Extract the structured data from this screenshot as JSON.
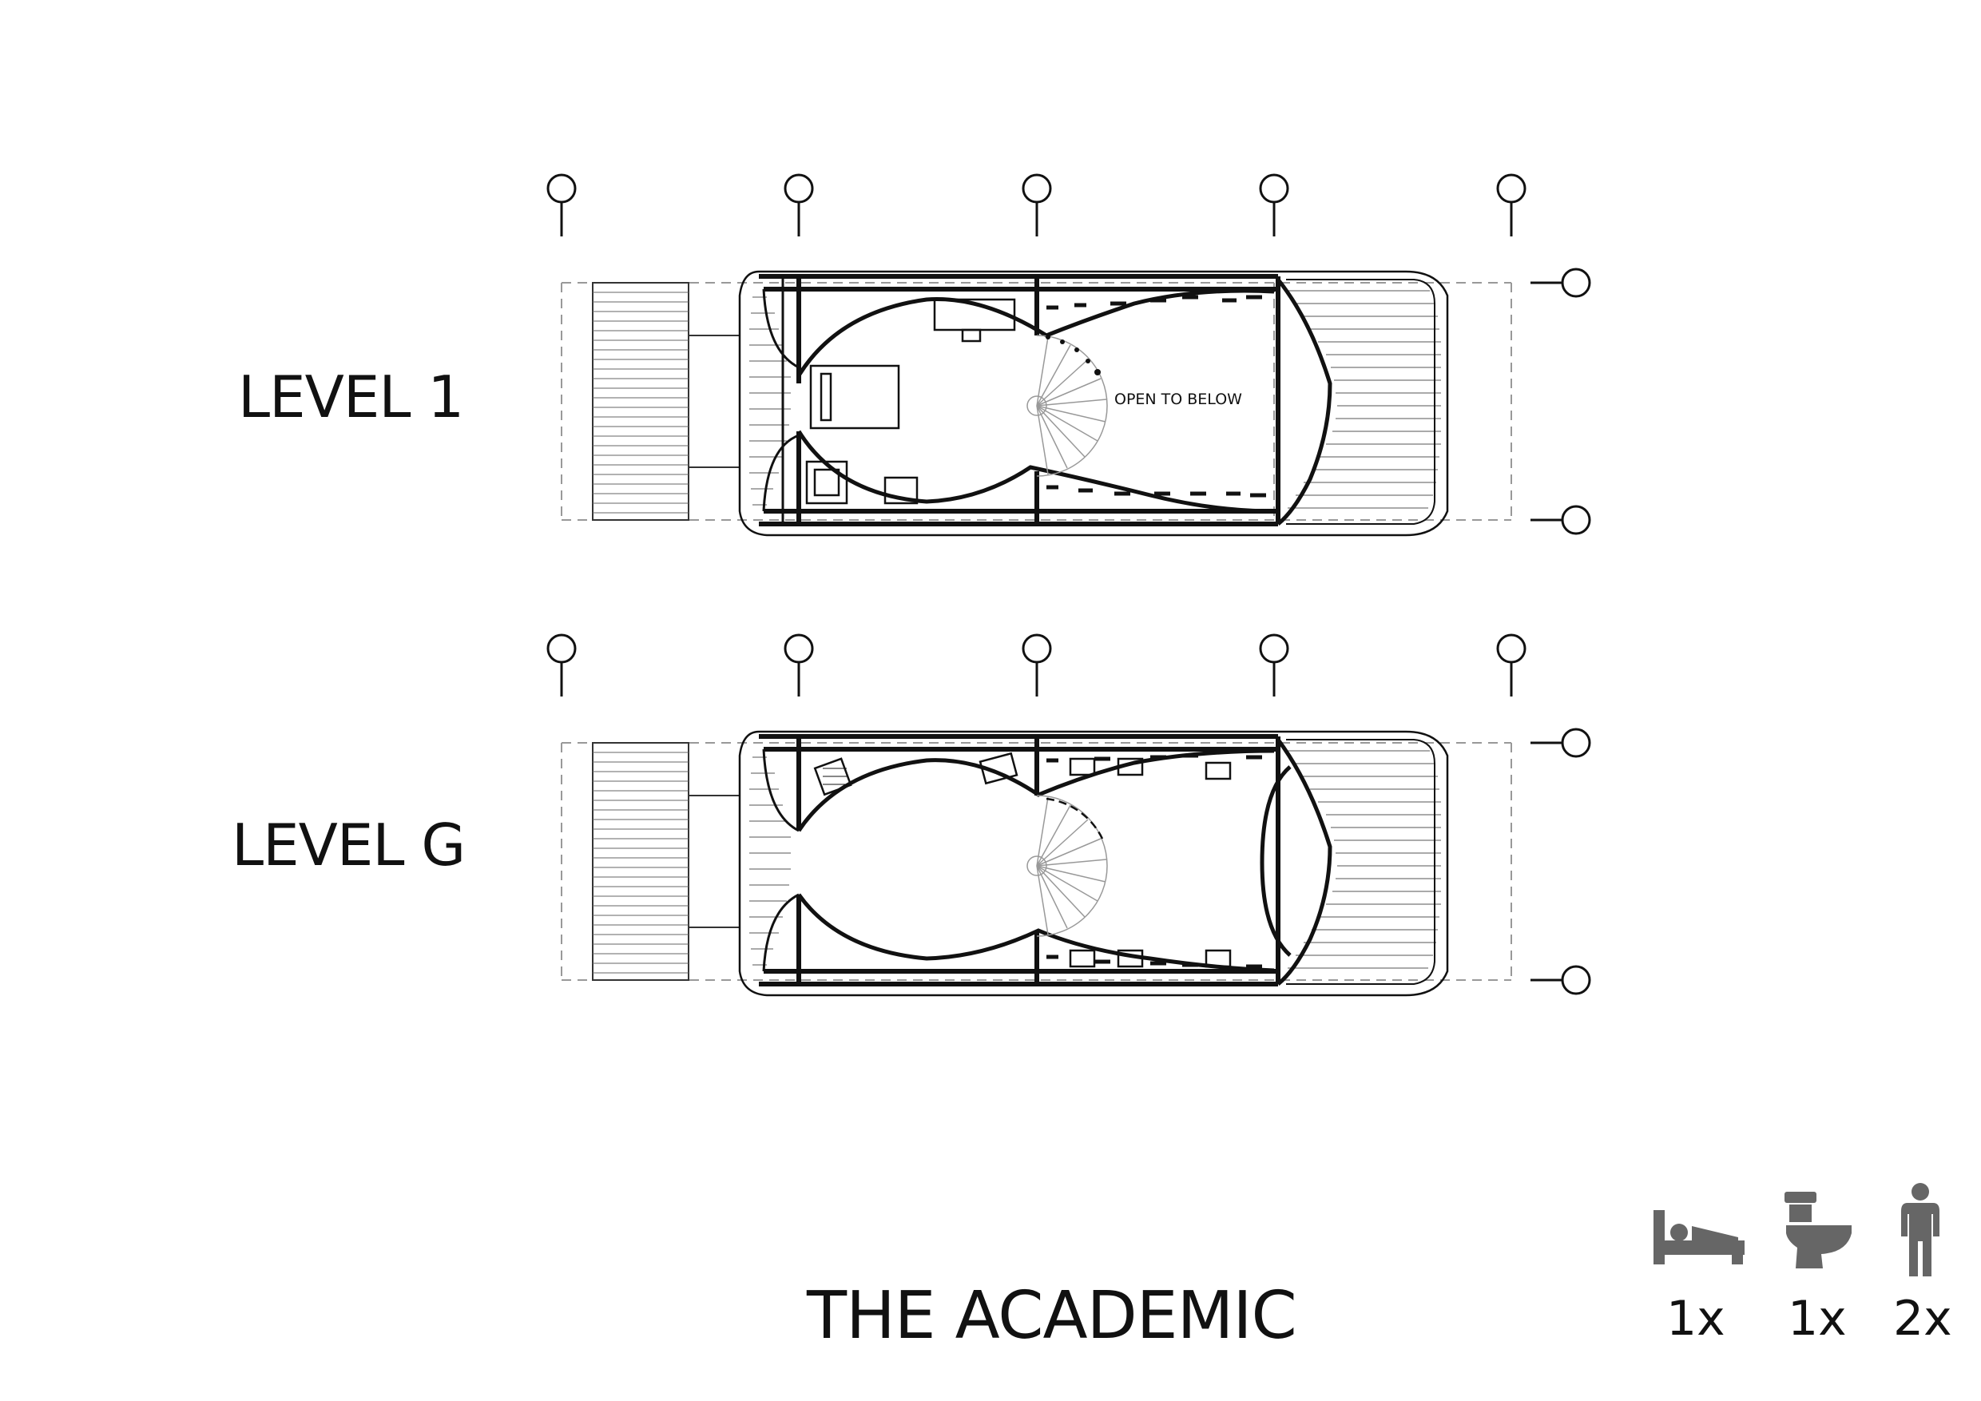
{
  "levels": [
    {
      "label": "LEVEL 1",
      "annotation": "OPEN TO BELOW"
    },
    {
      "label": "LEVEL G",
      "annotation": ""
    }
  ],
  "title": "THE ACADEMIC",
  "legend": [
    {
      "icon": "bed-icon",
      "count": "1x"
    },
    {
      "icon": "toilet-icon",
      "count": "1x"
    },
    {
      "icon": "person-icon",
      "count": "2x"
    }
  ],
  "colors": {
    "line": "#111111",
    "icon": "#666666",
    "dash": "#999999"
  }
}
